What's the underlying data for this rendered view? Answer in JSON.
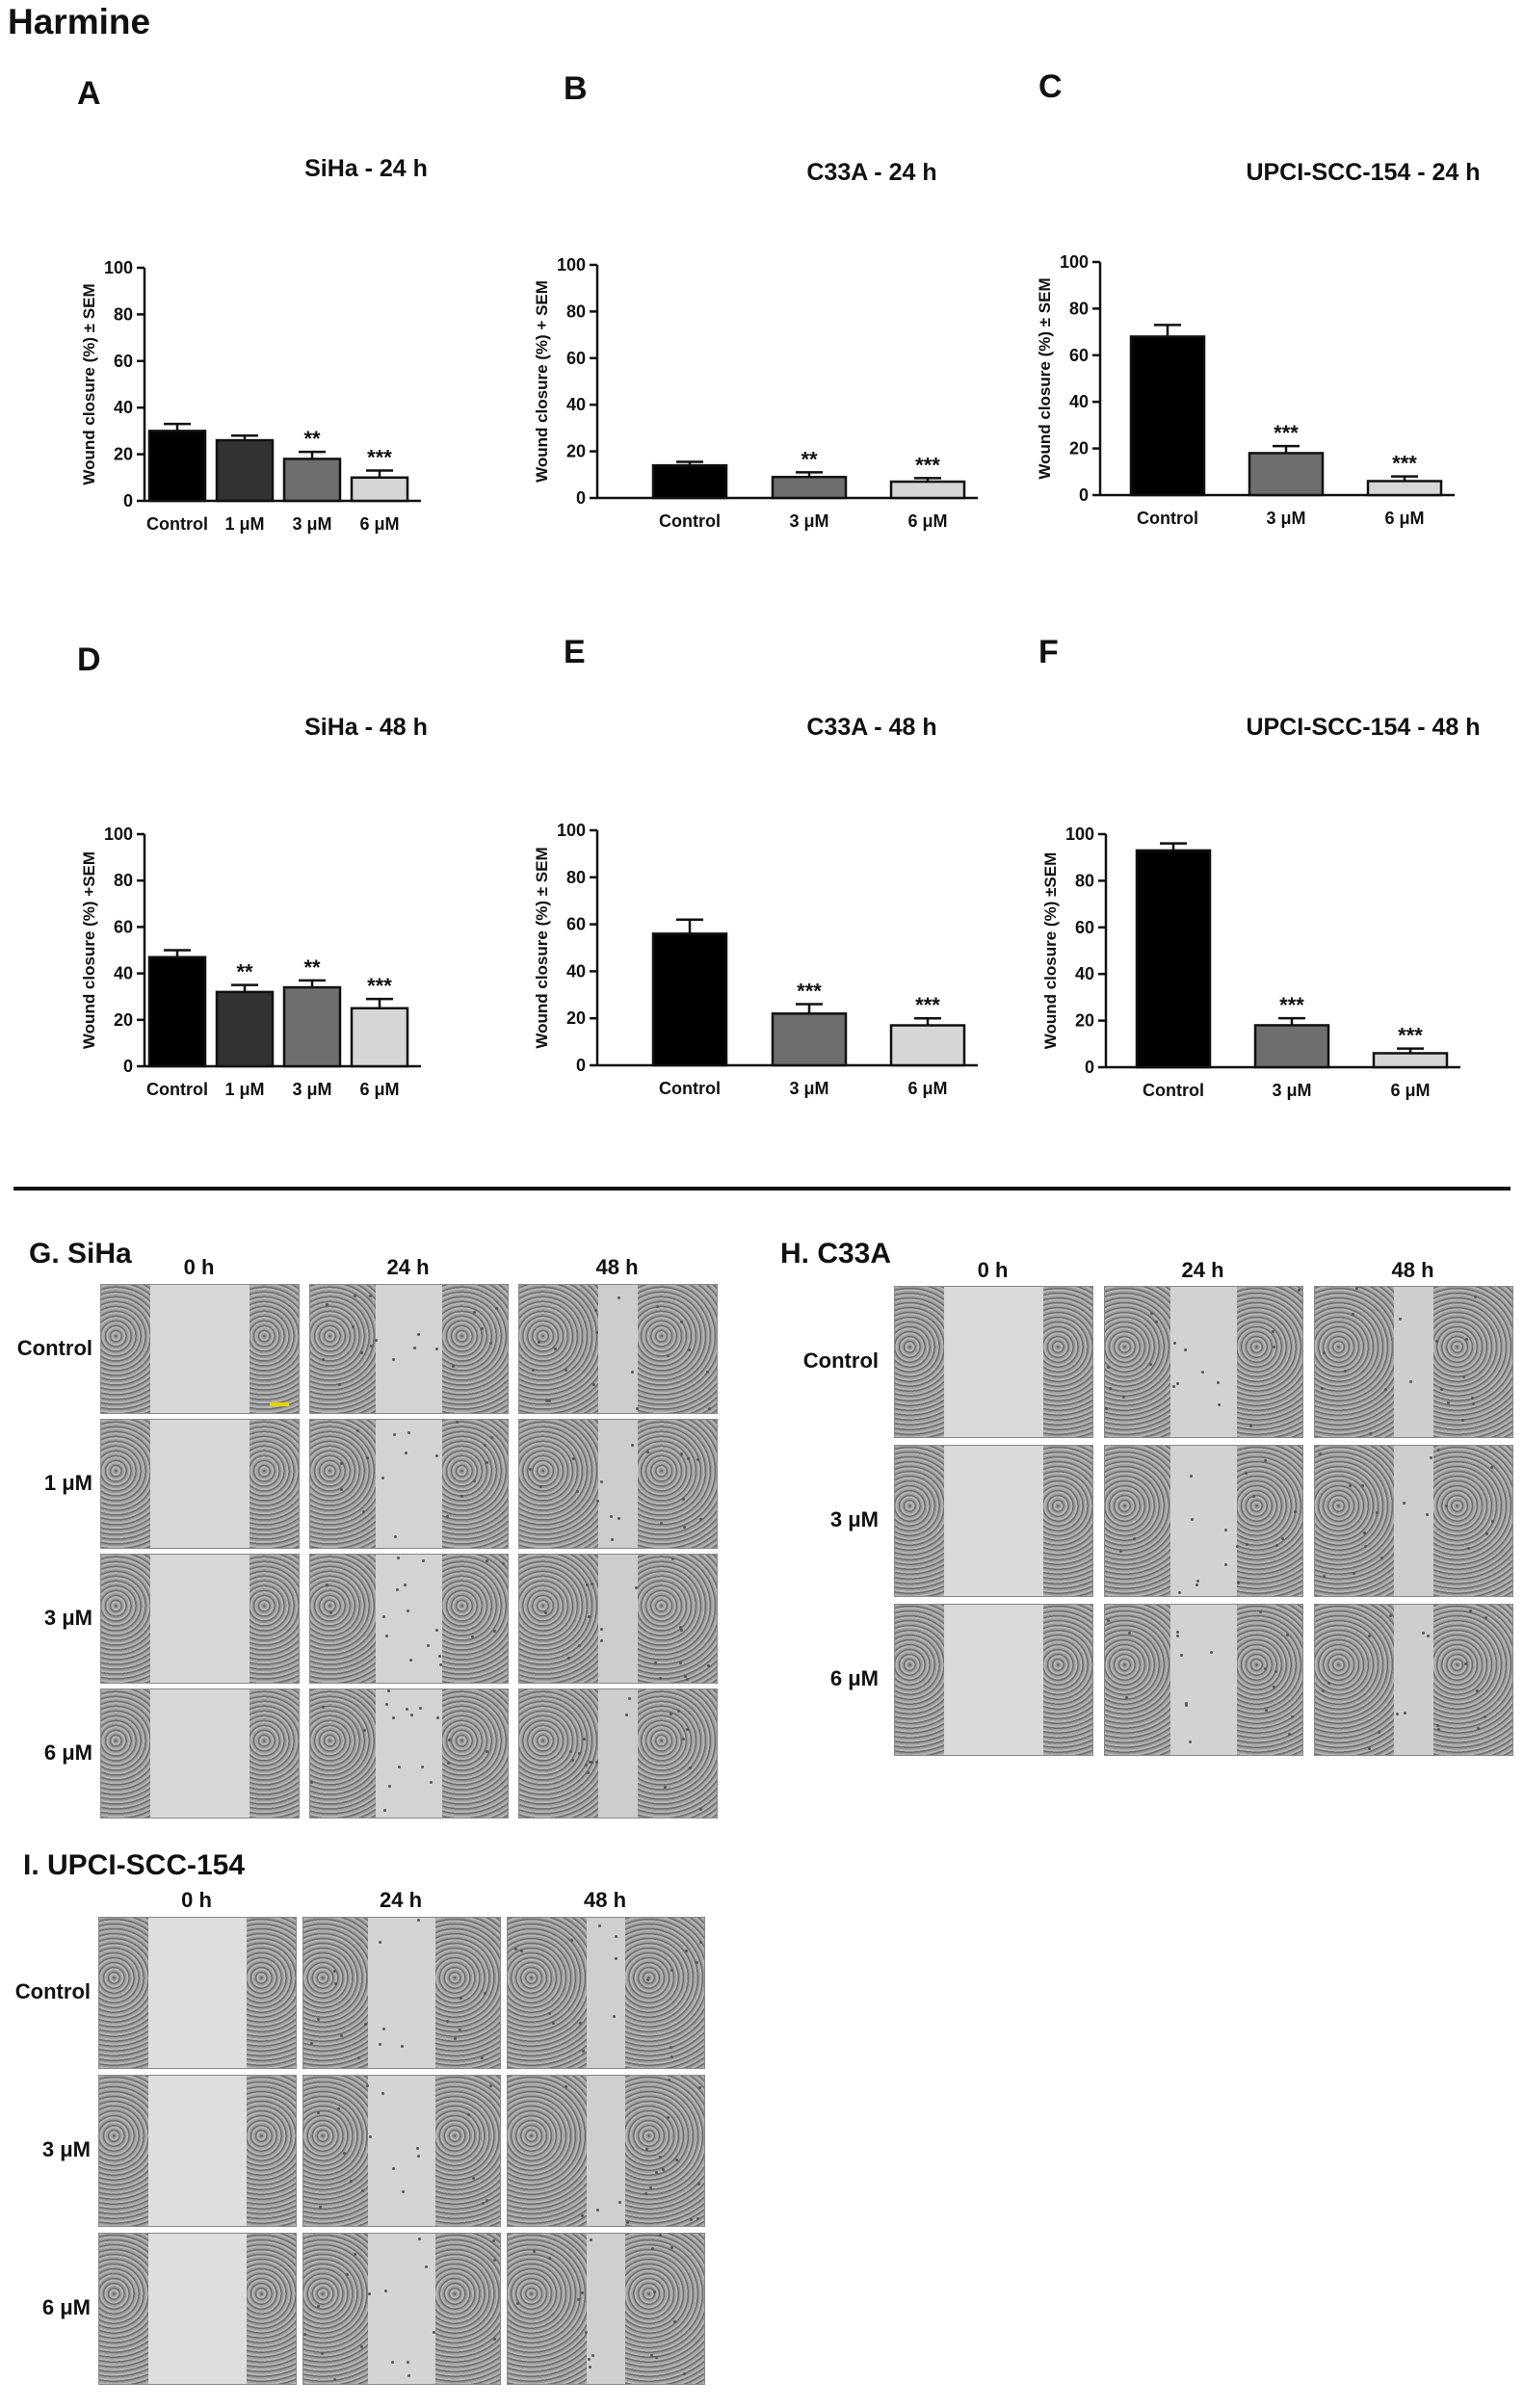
{
  "figure_title": "Harmine",
  "colors": {
    "control": "#000000",
    "dose1": "#333333",
    "dose3": "#6e6e6e",
    "dose6": "#d6d6d6",
    "scalebar": "#e8d400"
  },
  "chart_data": [
    {
      "panel": "A",
      "type": "bar",
      "title": "SiHa - 24 h",
      "ylabel": "Wound closure (%) ± SEM",
      "ylim": [
        0,
        100
      ],
      "yticks": [
        "0",
        "20",
        "40",
        "60",
        "80",
        "100"
      ],
      "categories": [
        "Control",
        "1 μM",
        "3 μM",
        "6 μM"
      ],
      "values": [
        30,
        26,
        18,
        10
      ],
      "errors": [
        3,
        2,
        3,
        3
      ],
      "significance": [
        "",
        "",
        "**",
        "***"
      ]
    },
    {
      "panel": "B",
      "type": "bar",
      "title": "C33A - 24 h",
      "ylabel": "Wound closure (%) + SEM",
      "ylim": [
        0,
        100
      ],
      "yticks": [
        "0",
        "20",
        "40",
        "60",
        "80",
        "100"
      ],
      "categories": [
        "Control",
        "3 μM",
        "6 μM"
      ],
      "values": [
        14,
        9,
        7
      ],
      "errors": [
        1.5,
        2,
        1.5
      ],
      "significance": [
        "",
        "**",
        "***"
      ]
    },
    {
      "panel": "C",
      "type": "bar",
      "title": "UPCI-SCC-154 - 24 h",
      "ylabel": "Wound closure (%) ± SEM",
      "ylim": [
        0,
        100
      ],
      "yticks": [
        "0",
        "20",
        "40",
        "60",
        "80",
        "100"
      ],
      "categories": [
        "Control",
        "3 μM",
        "6 μM"
      ],
      "values": [
        68,
        18,
        6
      ],
      "errors": [
        5,
        3,
        2
      ],
      "significance": [
        "",
        "***",
        "***"
      ]
    },
    {
      "panel": "D",
      "type": "bar",
      "title": "SiHa - 48 h",
      "ylabel": "Wound closure (%) +SEM",
      "ylim": [
        0,
        100
      ],
      "yticks": [
        "0",
        "20",
        "40",
        "60",
        "80",
        "100"
      ],
      "categories": [
        "Control",
        "1 μM",
        "3 μM",
        "6 μM"
      ],
      "values": [
        47,
        32,
        34,
        25
      ],
      "errors": [
        3,
        3,
        3,
        4
      ],
      "significance": [
        "",
        "**",
        "**",
        "***"
      ]
    },
    {
      "panel": "E",
      "type": "bar",
      "title": "C33A - 48 h",
      "ylabel": "Wound closure (%) ± SEM",
      "ylim": [
        0,
        100
      ],
      "yticks": [
        "0",
        "20",
        "40",
        "60",
        "80",
        "100"
      ],
      "categories": [
        "Control",
        "3 μM",
        "6 μM"
      ],
      "values": [
        56,
        22,
        17
      ],
      "errors": [
        6,
        4,
        3
      ],
      "significance": [
        "",
        "***",
        "***"
      ]
    },
    {
      "panel": "F",
      "type": "bar",
      "title": "UPCI-SCC-154 - 48 h",
      "ylabel": "Wound closure (%) ±SEM",
      "ylim": [
        0,
        100
      ],
      "yticks": [
        "0",
        "20",
        "40",
        "60",
        "80",
        "100"
      ],
      "categories": [
        "Control",
        "3 μM",
        "6 μM"
      ],
      "values": [
        93,
        18,
        6
      ],
      "errors": [
        3,
        3,
        2
      ],
      "significance": [
        "",
        "***",
        "***"
      ]
    }
  ],
  "micrographs": {
    "G": {
      "label": "G. SiHa",
      "columns": [
        "0 h",
        "24 h",
        "48 h"
      ],
      "rows": [
        "Control",
        "1 μM",
        "3 μM",
        "6 μM"
      ]
    },
    "H": {
      "label": "H. C33A",
      "columns": [
        "0 h",
        "24 h",
        "48 h"
      ],
      "rows": [
        "Control",
        "3 μM",
        "6 μM"
      ]
    },
    "I": {
      "label": "I. UPCI-SCC-154",
      "columns": [
        "0 h",
        "24 h",
        "48 h"
      ],
      "rows": [
        "Control",
        "3 μM",
        "6 μM"
      ]
    }
  }
}
